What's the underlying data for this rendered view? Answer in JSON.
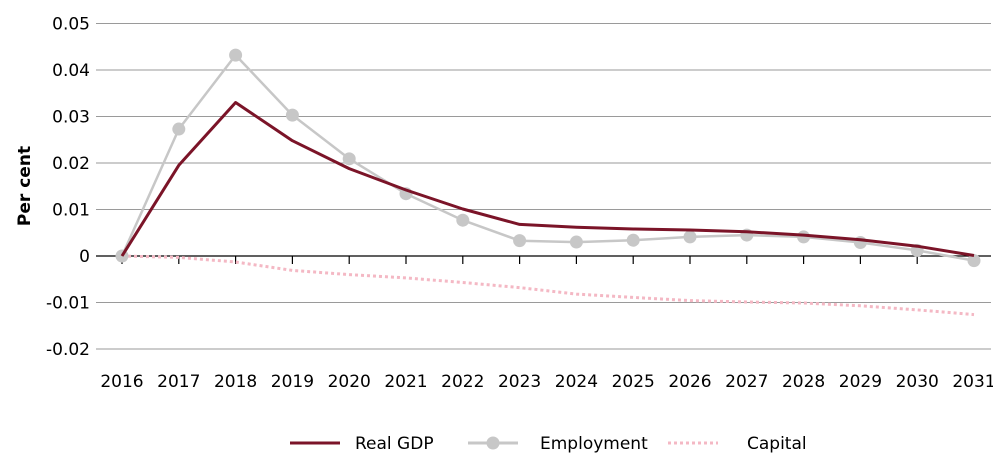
{
  "chart_data": {
    "type": "line",
    "title": "",
    "xlabel": "",
    "ylabel": "Per cent",
    "ylim": [
      -0.02,
      0.05
    ],
    "yticks": [
      {
        "value": 0.05,
        "label": "0.05"
      },
      {
        "value": 0.04,
        "label": "0.04"
      },
      {
        "value": 0.03,
        "label": "0.03"
      },
      {
        "value": 0.02,
        "label": "0.02"
      },
      {
        "value": 0.01,
        "label": "0.01"
      },
      {
        "value": 0,
        "label": "0"
      },
      {
        "value": -0.01,
        "label": "-0.01"
      },
      {
        "value": -0.02,
        "label": "-0.02"
      }
    ],
    "categories": [
      "2016",
      "2017",
      "2018",
      "2019",
      "2020",
      "2021",
      "2022",
      "2023",
      "2024",
      "2025",
      "2026",
      "2027",
      "2028",
      "2029",
      "2030",
      "2031"
    ],
    "grid": true,
    "legend_position": "bottom",
    "series": [
      {
        "name": "Real GDP",
        "color": "#7b1428",
        "style": "solid",
        "values": [
          0.0,
          0.0195,
          0.033,
          0.0248,
          0.0188,
          0.0142,
          0.0101,
          0.0068,
          0.0062,
          0.0058,
          0.0056,
          0.0052,
          0.0045,
          0.0035,
          0.0021,
          0.0001
        ]
      },
      {
        "name": "Employment",
        "color": "#c7c7c7",
        "style": "solid-markers",
        "values": [
          0.0,
          0.0273,
          0.0432,
          0.0303,
          0.0209,
          0.0134,
          0.0077,
          0.0033,
          0.003,
          0.0034,
          0.0041,
          0.0045,
          0.0041,
          0.0029,
          0.0012,
          -0.001
        ]
      },
      {
        "name": "Capital",
        "color": "#f4b8c4",
        "style": "dotted",
        "values": [
          0.0,
          -0.0003,
          -0.0013,
          -0.0031,
          -0.004,
          -0.0047,
          -0.0057,
          -0.0068,
          -0.0082,
          -0.0089,
          -0.0096,
          -0.0099,
          -0.0101,
          -0.0107,
          -0.0116,
          -0.0126
        ]
      }
    ]
  }
}
